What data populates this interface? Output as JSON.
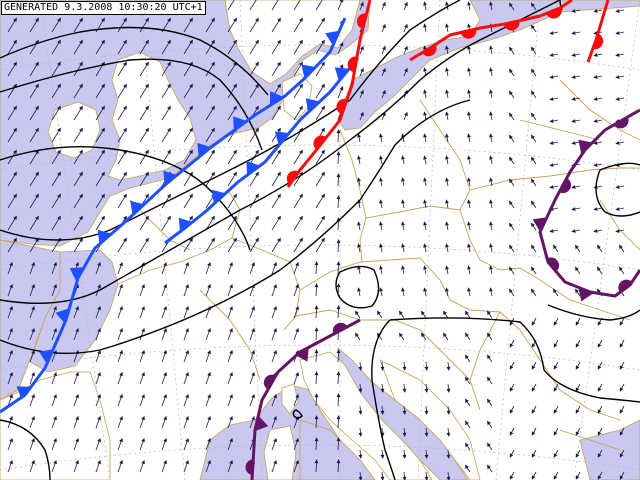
{
  "header": {
    "generated_text": "GENERATED 9.3.2008 10:30:20 UTC+1"
  },
  "colors": {
    "land": "#ffffff",
    "sea": "#c8c8f0",
    "borders": "#c8a050",
    "graticule": "#b4b4c8",
    "wind_arrows": "#1a1a50",
    "isobars": "#000000",
    "cold_front": "#1e50ff",
    "warm_front": "#ff0a0a",
    "occluded_front": "#641464"
  },
  "map_layers": [
    "sea",
    "land",
    "borders",
    "graticule",
    "wind-arrows",
    "isobars",
    "cold-fronts",
    "warm-fronts",
    "occluded-fronts"
  ],
  "fronts": [
    {
      "type": "cold",
      "label": ""
    },
    {
      "type": "cold",
      "label": ""
    },
    {
      "type": "warm",
      "label": ""
    },
    {
      "type": "warm",
      "label": ""
    },
    {
      "type": "warm",
      "label": ""
    },
    {
      "type": "occluded",
      "label": ""
    },
    {
      "type": "occluded",
      "label": ""
    }
  ]
}
